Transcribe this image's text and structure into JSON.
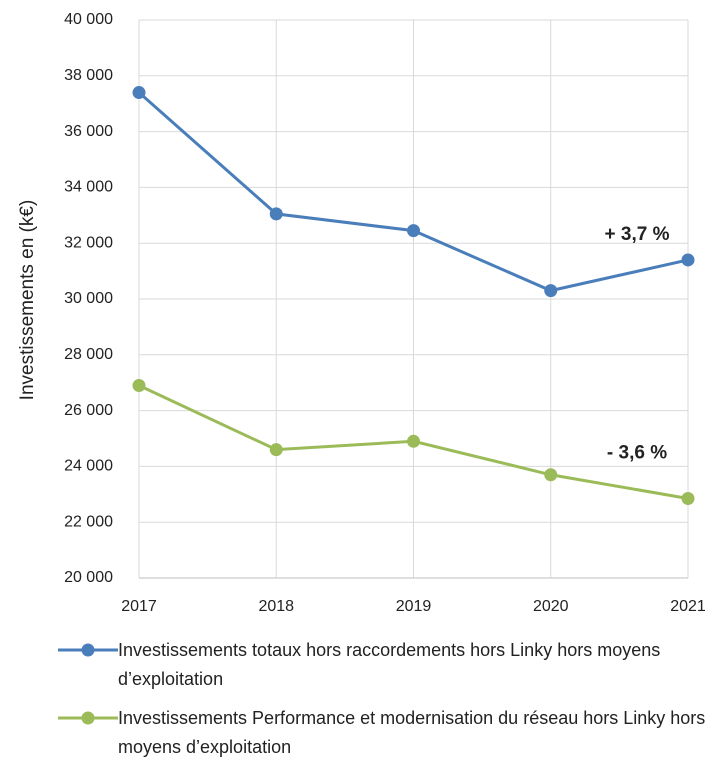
{
  "chart_data": {
    "type": "line",
    "ylabel": "Investissements en (k€)",
    "categories": [
      "2017",
      "2018",
      "2019",
      "2020",
      "2021"
    ],
    "series": [
      {
        "name": "Investissements totaux hors raccordements hors Linky hors moyens d’exploitation",
        "color": "#4a7ebb",
        "values": [
          37400,
          33050,
          32450,
          30300,
          31400
        ]
      },
      {
        "name": "Investissements Performance et modernisation du réseau hors Linky hors moyens d’exploitation",
        "color": "#9bbb59",
        "values": [
          26900,
          24600,
          24900,
          23700,
          22850
        ]
      }
    ],
    "annotations": [
      "+ 3,7 %",
      "- 3,6 %"
    ],
    "ylim": [
      20000,
      40000
    ],
    "yticks": [
      {
        "value": 20000,
        "label": "20 000"
      },
      {
        "value": 22000,
        "label": "22 000"
      },
      {
        "value": 24000,
        "label": "24 000"
      },
      {
        "value": 26000,
        "label": "26 000"
      },
      {
        "value": 28000,
        "label": "28 000"
      },
      {
        "value": 30000,
        "label": "30 000"
      },
      {
        "value": 32000,
        "label": "32 000"
      },
      {
        "value": 34000,
        "label": "34 000"
      },
      {
        "value": 36000,
        "label": "36 000"
      },
      {
        "value": 38000,
        "label": "38 000"
      },
      {
        "value": 40000,
        "label": "40 000"
      }
    ],
    "grid": true
  }
}
